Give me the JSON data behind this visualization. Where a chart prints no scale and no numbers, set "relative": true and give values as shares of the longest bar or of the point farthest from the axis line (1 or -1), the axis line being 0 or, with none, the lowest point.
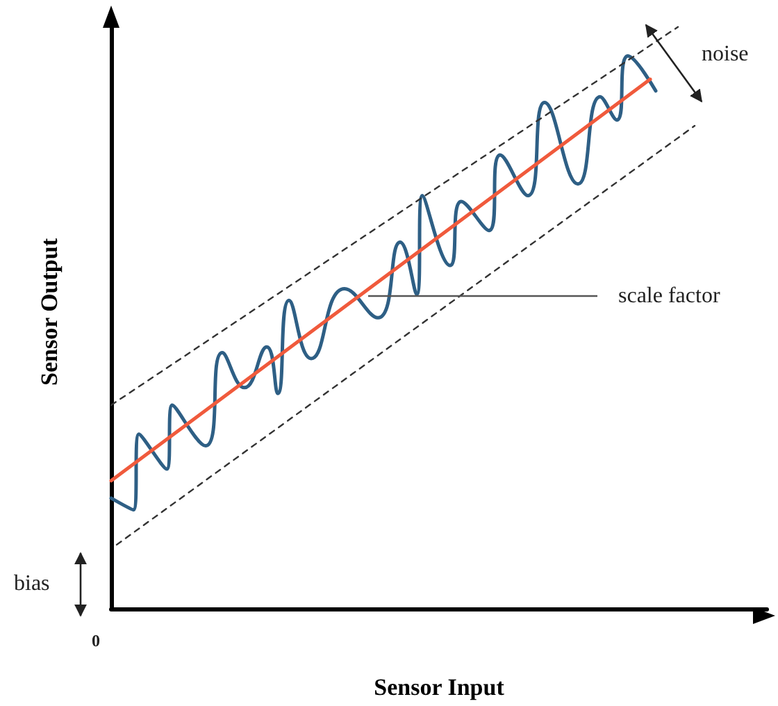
{
  "chart_data": {
    "type": "line",
    "relative": true,
    "xlabel": "Sensor Input",
    "ylabel": "Sensor Output",
    "marker": "none",
    "grid": false,
    "annotations": [
      "noise",
      "scale factor",
      "bias",
      "0"
    ],
    "categories": [
      null,
      null,
      null,
      null,
      null,
      null,
      null,
      null,
      null,
      null,
      null,
      null,
      null,
      null,
      null,
      null,
      null,
      null,
      null,
      null,
      null,
      null,
      null,
      null,
      null,
      null,
      null,
      null,
      null,
      null,
      null,
      null,
      null,
      null,
      null,
      null,
      null,
      null,
      null,
      null,
      null,
      null,
      null,
      null,
      null,
      null,
      null,
      null,
      null,
      null,
      null,
      null,
      null,
      null,
      null,
      null,
      null,
      null,
      null,
      null,
      null,
      null,
      null,
      null,
      null,
      null,
      null,
      null,
      null,
      null,
      null,
      null,
      null,
      null,
      null,
      null,
      null,
      null,
      null,
      null,
      null,
      null,
      null,
      null,
      null,
      null,
      null,
      null,
      null,
      null,
      null,
      null,
      null,
      null,
      null,
      null,
      null,
      null,
      null,
      null,
      null,
      null,
      null,
      null,
      null,
      null,
      null,
      null,
      null,
      null,
      null,
      null,
      null,
      null,
      null,
      null,
      null,
      null,
      null
    ],
    "series": [
      {
        "color": "#2e5f85",
        "line_style": "solid",
        "values": [
          0.19,
          null,
          null,
          null,
          0.17,
          0.3,
          null,
          null,
          null,
          null,
          0.24,
          0.35,
          null,
          null,
          null,
          null,
          null,
          0.28,
          null,
          null,
          0.44,
          null,
          null,
          null,
          0.38,
          null,
          null,
          null,
          0.45,
          null,
          0.37,
          null,
          0.53,
          null,
          null,
          null,
          0.43,
          null,
          null,
          null,
          null,
          null,
          0.55,
          null,
          null,
          null,
          null,
          null,
          0.5,
          null,
          null,
          null,
          0.63,
          null,
          null,
          0.54,
          0.71,
          null,
          null,
          null,
          null,
          0.59,
          null,
          0.7,
          null,
          null,
          null,
          null,
          0.65,
          null,
          0.78,
          null,
          null,
          null,
          null,
          0.71,
          null,
          null,
          0.87,
          null,
          null,
          null,
          null,
          null,
          0.73,
          null,
          null,
          null,
          0.88,
          null,
          null,
          0.84,
          null,
          0.95,
          null,
          null,
          null,
          null,
          0.89,
          null,
          null,
          null,
          null,
          null,
          null,
          null,
          null,
          null,
          null,
          null,
          null,
          null,
          null,
          null,
          null,
          null,
          null,
          null,
          null
        ]
      },
      {
        "color": "#f05a3c",
        "line_style": "solid",
        "values": [
          0.22,
          null,
          null,
          null,
          null,
          null,
          null,
          null,
          null,
          null,
          null,
          null,
          null,
          null,
          null,
          null,
          null,
          null,
          null,
          null,
          null,
          null,
          null,
          null,
          null,
          null,
          null,
          null,
          null,
          null,
          null,
          null,
          null,
          null,
          null,
          null,
          null,
          null,
          null,
          null,
          null,
          null,
          null,
          null,
          null,
          null,
          null,
          null,
          null,
          null,
          null,
          null,
          null,
          null,
          null,
          null,
          null,
          null,
          null,
          null,
          null,
          null,
          null,
          null,
          null,
          null,
          null,
          null,
          null,
          null,
          null,
          null,
          null,
          null,
          null,
          null,
          null,
          null,
          null,
          null,
          null,
          null,
          null,
          null,
          null,
          null,
          null,
          null,
          null,
          null,
          null,
          null,
          null,
          null,
          null,
          null,
          null,
          0.91,
          null,
          null,
          null,
          null,
          null,
          null,
          null,
          null,
          null,
          null,
          null,
          null,
          null,
          null,
          null,
          null,
          null,
          null,
          null,
          null,
          null
        ]
      },
      {
        "color": "#333333",
        "line_style": "dashed",
        "values": [
          0.35,
          null,
          null,
          null,
          null,
          null,
          null,
          null,
          null,
          null,
          null,
          null,
          null,
          null,
          null,
          null,
          null,
          null,
          null,
          null,
          null,
          null,
          null,
          null,
          null,
          null,
          null,
          null,
          null,
          null,
          null,
          null,
          null,
          null,
          null,
          null,
          null,
          null,
          null,
          null,
          null,
          null,
          null,
          null,
          null,
          null,
          null,
          null,
          null,
          null,
          null,
          null,
          null,
          null,
          null,
          null,
          null,
          null,
          null,
          null,
          null,
          null,
          null,
          null,
          null,
          null,
          null,
          null,
          null,
          null,
          null,
          null,
          null,
          null,
          null,
          null,
          null,
          null,
          null,
          null,
          null,
          null,
          null,
          null,
          null,
          null,
          null,
          null,
          null,
          null,
          null,
          null,
          null,
          null,
          null,
          null,
          null,
          null,
          null,
          null,
          null,
          null,
          1,
          null,
          null,
          null,
          null,
          null,
          null,
          null,
          null,
          null,
          null,
          null,
          null,
          null,
          null,
          null,
          null
        ]
      },
      {
        "color": "#333333",
        "line_style": "dashed",
        "values": [
          null,
          0.11,
          null,
          null,
          null,
          null,
          null,
          null,
          null,
          null,
          null,
          null,
          null,
          null,
          null,
          null,
          null,
          null,
          null,
          null,
          null,
          null,
          null,
          null,
          null,
          null,
          null,
          null,
          null,
          null,
          null,
          null,
          null,
          null,
          null,
          null,
          null,
          null,
          null,
          null,
          null,
          null,
          null,
          null,
          null,
          null,
          null,
          null,
          null,
          null,
          null,
          null,
          null,
          null,
          null,
          null,
          null,
          null,
          null,
          null,
          null,
          null,
          null,
          null,
          null,
          null,
          null,
          null,
          null,
          null,
          null,
          null,
          null,
          null,
          null,
          null,
          null,
          null,
          null,
          null,
          null,
          null,
          null,
          null,
          null,
          null,
          null,
          null,
          null,
          null,
          null,
          null,
          null,
          null,
          null,
          null,
          null,
          null,
          null,
          null,
          null,
          null,
          null,
          null,
          null,
          0.83,
          null,
          null,
          null,
          null,
          null,
          null,
          null,
          null,
          null,
          null,
          null,
          null,
          null
        ]
      }
    ]
  }
}
